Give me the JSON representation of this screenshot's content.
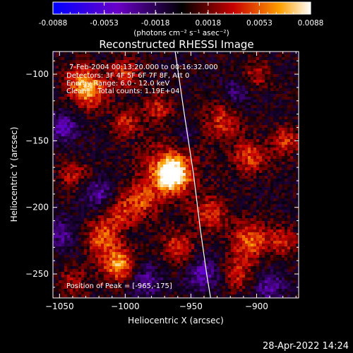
{
  "chart_data": {
    "type": "heatmap",
    "title": "Reconstructed RHESSI Image",
    "xlabel": "Heliocentric X (arcsec)",
    "ylabel": "Heliocentric Y (arcsec)",
    "xlim": [
      -1055,
      -868
    ],
    "ylim": [
      -268,
      -83
    ],
    "x_ticks": [
      -1050,
      -1000,
      -950,
      -900
    ],
    "y_ticks": [
      -100,
      -150,
      -200,
      -250
    ],
    "colorbar": {
      "ticks": [
        "-0.0088",
        "-0.0053",
        "-0.0018",
        "0.0018",
        "0.0053",
        "0.0088"
      ],
      "range": [
        -0.0088,
        0.0088
      ],
      "units": "(photons cm⁻² s⁻¹ asec⁻²)"
    },
    "annotations": [
      "7-Feb-2004 00:13:20.000 to 00:16:32.000",
      "Detectors: 3F 4F 5F 6F 7F 8F, Att 0",
      "Energy Range: 6.0 - 12.0 keV",
      "Clean     Total counts: 1.19E+04"
    ],
    "peak_label": "Position of Peak = [-965,-175]",
    "peak": [
      -965,
      -175
    ],
    "limb_points": [
      [
        -962,
        -83
      ],
      [
        -955,
        -130
      ],
      [
        -948,
        -175
      ],
      [
        -943,
        -215
      ],
      [
        -938,
        -250
      ],
      [
        -935,
        -268
      ]
    ],
    "blobs": [
      {
        "x": -965,
        "y": -175,
        "amp": 1.0,
        "r": 9
      },
      {
        "x": -966,
        "y": -172,
        "amp": 0.35,
        "r": 18
      },
      {
        "x": -1027,
        "y": -113,
        "amp": 0.7,
        "r": 9
      },
      {
        "x": -1035,
        "y": -103,
        "amp": 0.45,
        "r": 8
      },
      {
        "x": -1000,
        "y": -100,
        "amp": 0.45,
        "r": 8
      },
      {
        "x": -975,
        "y": -125,
        "amp": 0.4,
        "r": 8
      },
      {
        "x": -1000,
        "y": -137,
        "amp": 0.4,
        "r": 8
      },
      {
        "x": -988,
        "y": -195,
        "amp": 0.45,
        "r": 9
      },
      {
        "x": -1005,
        "y": -205,
        "amp": 0.4,
        "r": 9
      },
      {
        "x": -1018,
        "y": -223,
        "amp": 0.55,
        "r": 9
      },
      {
        "x": -1005,
        "y": -243,
        "amp": 0.75,
        "r": 9
      },
      {
        "x": -1040,
        "y": -175,
        "amp": 0.35,
        "r": 9
      },
      {
        "x": -1040,
        "y": -255,
        "amp": 0.3,
        "r": 8
      },
      {
        "x": -960,
        "y": -230,
        "amp": 0.45,
        "r": 9
      },
      {
        "x": -925,
        "y": -135,
        "amp": 0.45,
        "r": 10
      },
      {
        "x": -905,
        "y": -162,
        "amp": 0.5,
        "r": 9
      },
      {
        "x": -878,
        "y": -150,
        "amp": 0.45,
        "r": 8
      },
      {
        "x": -935,
        "y": -205,
        "amp": 0.45,
        "r": 9
      },
      {
        "x": -905,
        "y": -225,
        "amp": 0.6,
        "r": 10
      },
      {
        "x": -880,
        "y": -225,
        "amp": 0.4,
        "r": 8
      },
      {
        "x": -915,
        "y": -250,
        "amp": 0.4,
        "r": 9
      },
      {
        "x": -900,
        "y": -100,
        "amp": 0.35,
        "r": 8
      },
      {
        "x": -1047,
        "y": -140,
        "amp": -0.45,
        "r": 8
      },
      {
        "x": -1020,
        "y": -190,
        "amp": -0.4,
        "r": 8
      },
      {
        "x": -985,
        "y": -255,
        "amp": -0.35,
        "r": 9
      },
      {
        "x": -940,
        "y": -250,
        "amp": -0.45,
        "r": 9
      },
      {
        "x": -890,
        "y": -260,
        "amp": -0.4,
        "r": 8
      },
      {
        "x": -915,
        "y": -115,
        "amp": -0.3,
        "r": 8
      },
      {
        "x": -955,
        "y": -145,
        "amp": -0.25,
        "r": 7
      },
      {
        "x": -1048,
        "y": -220,
        "amp": -0.35,
        "r": 8
      }
    ]
  },
  "footer_timestamp": "28-Apr-2022 14:24"
}
